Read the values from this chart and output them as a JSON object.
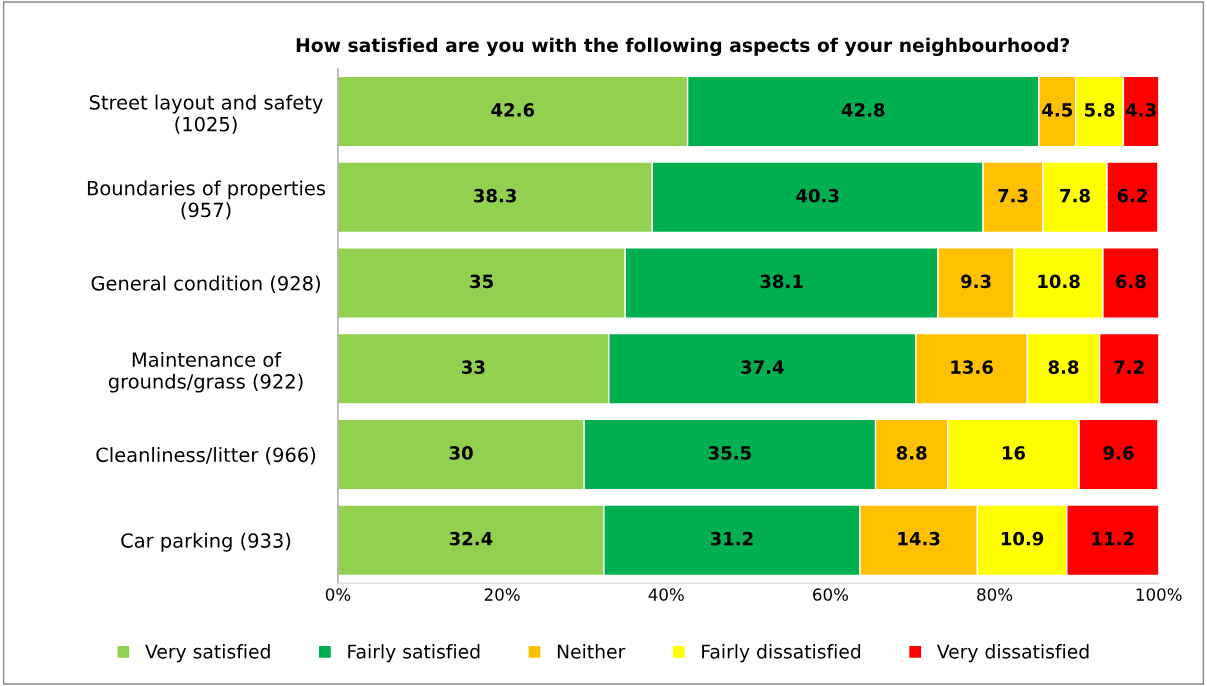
{
  "chart_data": {
    "type": "bar",
    "orientation": "horizontal",
    "stacked": true,
    "title": "How satisfied are you with the following aspects of your neighbourhood?",
    "categories": [
      "Street layout and safety\n(1025)",
      "Boundaries of properties\n(957)",
      "General condition (928)",
      "Maintenance of\ngrounds/grass (922)",
      "Cleanliness/litter (966)",
      "Car parking (933)"
    ],
    "series": [
      {
        "name": "Very satisfied",
        "color": "#92d050",
        "values": [
          42.6,
          38.3,
          35,
          33,
          30,
          32.4
        ]
      },
      {
        "name": "Fairly satisfied",
        "color": "#00b050",
        "values": [
          42.8,
          40.3,
          38.1,
          37.4,
          35.5,
          31.2
        ]
      },
      {
        "name": "Neither",
        "color": "#ffc000",
        "values": [
          4.5,
          7.3,
          9.3,
          13.6,
          8.8,
          14.3
        ]
      },
      {
        "name": "Fairly dissatisfied",
        "color": "#ffff00",
        "values": [
          5.8,
          7.8,
          10.8,
          8.8,
          16,
          10.9
        ]
      },
      {
        "name": "Very dissatisfied",
        "color": "#ff0000",
        "values": [
          4.3,
          6.2,
          6.8,
          7.2,
          9.6,
          11.2
        ]
      }
    ],
    "xlim": [
      0,
      100
    ],
    "xticks": [
      {
        "value": 0,
        "label": "0%"
      },
      {
        "value": 20,
        "label": "20%"
      },
      {
        "value": 40,
        "label": "40%"
      },
      {
        "value": 60,
        "label": "60%"
      },
      {
        "value": 80,
        "label": "80%"
      },
      {
        "value": 100,
        "label": "100%"
      }
    ],
    "data_labels": true,
    "grid": false,
    "legend": "bottom"
  }
}
